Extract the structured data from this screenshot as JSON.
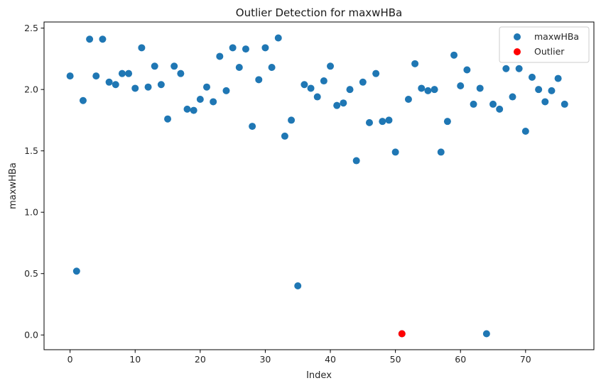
{
  "chart_data": {
    "type": "scatter",
    "title": "Outlier Detection for maxwHBa",
    "xlabel": "Index",
    "ylabel": "maxwHBa",
    "xlim": [
      -4,
      80.5
    ],
    "ylim": [
      -0.12,
      2.55
    ],
    "xticks": [
      0,
      10,
      20,
      30,
      40,
      50,
      60,
      70
    ],
    "yticks": [
      0.0,
      0.5,
      1.0,
      1.5,
      2.0,
      2.5
    ],
    "ytick_labels": [
      "0.0",
      "0.5",
      "1.0",
      "1.5",
      "2.0",
      "2.5"
    ],
    "grid": false,
    "legend_position": "top-right",
    "colors": {
      "maxwHBa": "#1f77b4",
      "Outlier": "#ff0000"
    },
    "series": [
      {
        "name": "maxwHBa",
        "x": [
          0,
          1,
          2,
          3,
          4,
          5,
          6,
          7,
          8,
          9,
          10,
          11,
          12,
          13,
          14,
          15,
          16,
          17,
          18,
          19,
          20,
          21,
          22,
          23,
          24,
          25,
          26,
          27,
          28,
          29,
          30,
          31,
          32,
          33,
          34,
          35,
          36,
          37,
          38,
          39,
          40,
          41,
          42,
          43,
          44,
          45,
          46,
          47,
          48,
          49,
          50,
          51,
          52,
          53,
          54,
          55,
          56,
          57,
          58,
          59,
          60,
          61,
          62,
          63,
          64,
          65,
          66,
          67,
          68,
          69,
          70,
          71,
          72,
          73,
          74,
          75,
          76
        ],
        "y": [
          2.11,
          0.52,
          1.91,
          2.41,
          2.11,
          2.41,
          2.06,
          2.04,
          2.13,
          2.13,
          2.01,
          2.34,
          2.02,
          2.19,
          2.04,
          1.76,
          2.19,
          2.13,
          1.84,
          1.83,
          1.92,
          2.02,
          1.9,
          2.27,
          1.99,
          2.34,
          2.18,
          2.33,
          1.7,
          2.08,
          2.34,
          2.18,
          2.42,
          1.62,
          1.75,
          0.4,
          2.04,
          2.01,
          1.94,
          2.07,
          2.19,
          1.87,
          1.89,
          2.0,
          1.42,
          2.06,
          1.73,
          2.13,
          1.74,
          1.75,
          1.49,
          0.01,
          1.92,
          2.21,
          2.01,
          1.99,
          2.0,
          1.49,
          1.74,
          2.28,
          2.03,
          2.16,
          1.88,
          2.01,
          0.01,
          1.88,
          1.84,
          2.17,
          1.94,
          2.17,
          1.66,
          2.1,
          2.0,
          1.9,
          1.99,
          2.09,
          1.88
        ]
      },
      {
        "name": "Outlier",
        "x": [
          51
        ],
        "y": [
          0.01
        ]
      }
    ]
  }
}
